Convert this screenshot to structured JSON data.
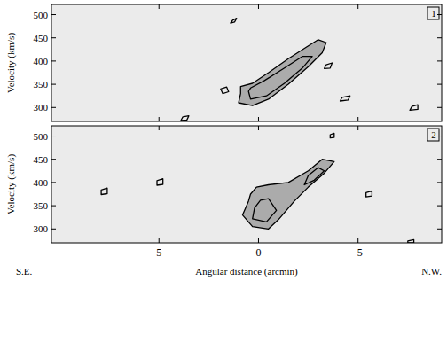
{
  "chart_data": [
    {
      "type": "contour",
      "title": "1",
      "ylabel": "Velocity (km/s)",
      "color": "#000000",
      "xlim": [
        10.4,
        -9.2
      ],
      "ylim": [
        270,
        522
      ],
      "xticks": [
        5,
        0,
        -5
      ],
      "yticks": [
        300,
        350,
        400,
        450,
        500
      ],
      "tick_labels": "y",
      "contours": [
        {
          "x": [
            0.9,
            1.0,
            0.3,
            -0.5,
            -1.5,
            -2.5,
            -3.2,
            -3.4,
            -3.0,
            -2.4,
            -1.5,
            -0.5,
            0.3,
            0.9
          ],
          "y": [
            330,
            310,
            304,
            318,
            350,
            388,
            418,
            440,
            446,
            430,
            405,
            375,
            352,
            345
          ]
        },
        {
          "x": [
            0.5,
            0.4,
            -0.4,
            -1.3,
            -2.2,
            -2.7,
            -2.2,
            -1.3,
            -0.3,
            0.4
          ],
          "y": [
            335,
            318,
            325,
            352,
            385,
            410,
            410,
            385,
            358,
            342
          ]
        },
        {
          "x": [
            1.9,
            1.6,
            1.5,
            1.8
          ],
          "y": [
            340,
            344,
            334,
            330
          ]
        },
        {
          "x": [
            -4.2,
            -4.6,
            -4.5,
            -4.1
          ],
          "y": [
            322,
            325,
            316,
            314
          ]
        },
        {
          "x": [
            -7.7,
            -8.0,
            -8.0,
            -7.6
          ],
          "y": [
            302,
            306,
            296,
            294
          ]
        },
        {
          "x": [
            3.8,
            3.5,
            3.6,
            3.9
          ],
          "y": [
            280,
            282,
            273,
            272
          ]
        },
        {
          "x": [
            -3.4,
            -3.7,
            -3.6,
            -3.3
          ],
          "y": [
            392,
            396,
            385,
            384
          ]
        },
        {
          "x": [
            1.3,
            1.1,
            1.2,
            1.4
          ],
          "y": [
            488,
            492,
            484,
            482
          ]
        }
      ]
    },
    {
      "type": "contour",
      "title": "2",
      "ylabel": "Velocity (km/s)",
      "xlabel": "Angular distance (arcmin)",
      "color": "#000000",
      "xlim": [
        10.4,
        -9.2
      ],
      "ylim": [
        270,
        522
      ],
      "xticks": [
        5,
        0,
        -5
      ],
      "yticks": [
        300,
        350,
        400,
        450,
        500
      ],
      "annotations": [
        "S.E.",
        "N.W."
      ],
      "contours": [
        {
          "x": [
            0.5,
            0.8,
            0.3,
            -0.5,
            -1.0,
            -1.8,
            -2.5,
            -3.3,
            -3.8,
            -3.2,
            -2.5,
            -1.5,
            -0.5,
            0.1,
            0.4
          ],
          "y": [
            360,
            330,
            305,
            300,
            320,
            360,
            390,
            420,
            445,
            450,
            425,
            400,
            395,
            390,
            375
          ]
        },
        {
          "x": [
            0.2,
            0.3,
            -0.4,
            -0.9,
            -0.5,
            -0.1
          ],
          "y": [
            345,
            322,
            315,
            340,
            365,
            362
          ]
        },
        {
          "x": [
            -2.3,
            -2.8,
            -3.3,
            -3.0,
            -2.5
          ],
          "y": [
            395,
            405,
            425,
            432,
            415
          ]
        },
        {
          "x": [
            7.9,
            7.6,
            7.6,
            7.9
          ],
          "y": [
            384,
            388,
            376,
            374
          ]
        },
        {
          "x": [
            5.1,
            4.8,
            4.8,
            5.1
          ],
          "y": [
            404,
            408,
            396,
            394
          ]
        },
        {
          "x": [
            -5.4,
            -5.7,
            -5.7,
            -5.4
          ],
          "y": [
            378,
            382,
            371,
            369
          ]
        },
        {
          "x": [
            -7.5,
            -7.8,
            -7.8,
            -7.5
          ],
          "y": [
            274,
            277,
            270,
            270
          ]
        },
        {
          "x": [
            -3.6,
            -3.8,
            -3.8,
            -3.6
          ],
          "y": [
            503,
            506,
            497,
            496
          ]
        }
      ]
    }
  ]
}
